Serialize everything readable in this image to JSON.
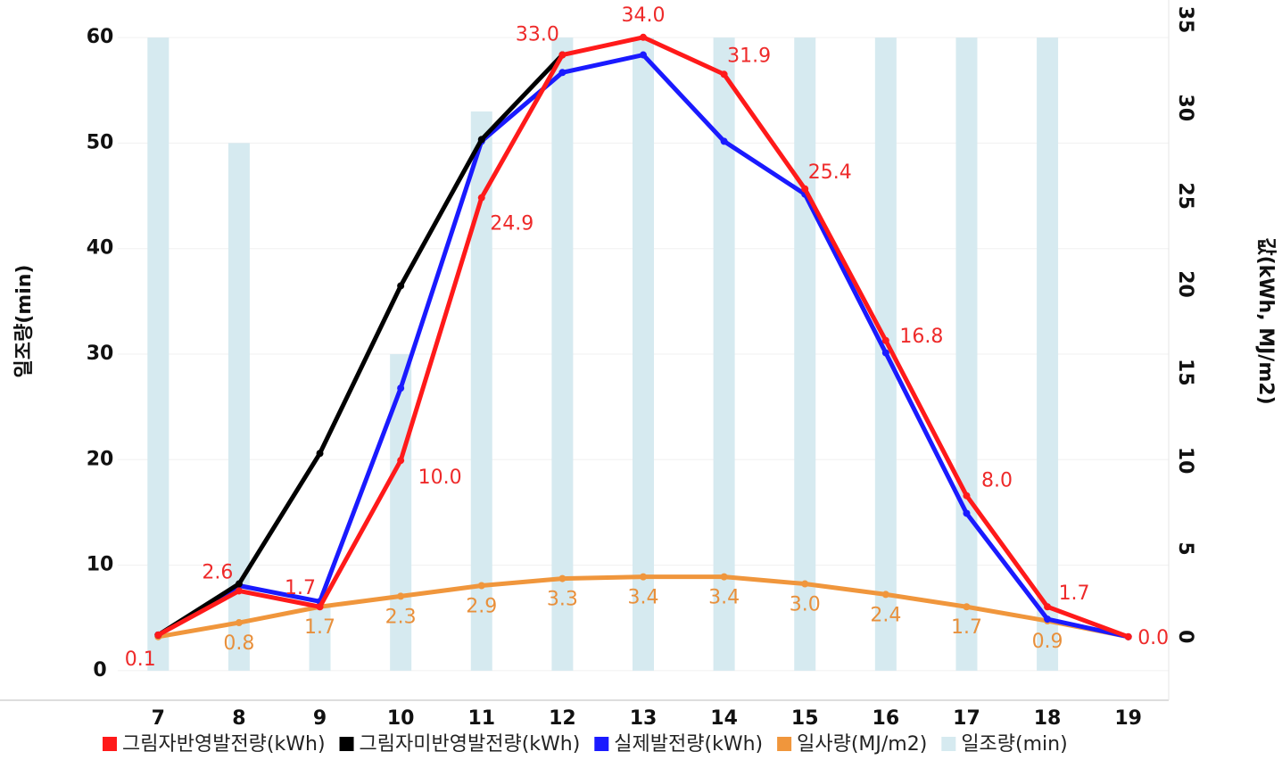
{
  "chart_data": {
    "type": "combo",
    "categories": [
      "7",
      "8",
      "9",
      "10",
      "11",
      "12",
      "13",
      "14",
      "15",
      "16",
      "17",
      "18",
      "19"
    ],
    "ylabel": "일조량(min)",
    "y2label": "값(kWh, MJ/m2)",
    "ylim": [
      -2.8,
      61.7
    ],
    "yticks": [
      0,
      10,
      20,
      30,
      40,
      50,
      60
    ],
    "y2lim": [
      -3.6,
      35
    ],
    "y2ticks": [
      0,
      5,
      10,
      15,
      20,
      25,
      30,
      35
    ],
    "grid": true,
    "legend": "bottom",
    "series": [
      {
        "name": "그림자반영발전량(kWh)",
        "type": "line",
        "axis": "y2",
        "color": "#ff1a1a",
        "values": [
          0.1,
          2.6,
          1.7,
          10.0,
          24.9,
          33.0,
          34.0,
          31.9,
          25.4,
          16.8,
          8.0,
          1.7,
          0.0
        ],
        "value_labels": [
          "0.1",
          "2.6",
          "1.7",
          "10.0",
          "24.9",
          "33.0",
          "34.0",
          "31.9",
          "25.4",
          "16.8",
          "8.0",
          "1.7",
          "0.0"
        ]
      },
      {
        "name": "그림자미반영발전량(kWh)",
        "type": "line",
        "axis": "y2",
        "color": "#000000",
        "values": [
          0.1,
          3.0,
          10.4,
          19.9,
          28.2,
          33.0,
          null,
          null,
          null,
          null,
          null,
          null,
          null
        ]
      },
      {
        "name": "실제발전량(kWh)",
        "type": "line",
        "axis": "y2",
        "color": "#1a1aff",
        "values": [
          0.1,
          2.9,
          2.0,
          14.1,
          28.1,
          32.0,
          33.0,
          28.1,
          25.1,
          16.1,
          7.0,
          1.0,
          0.0
        ]
      },
      {
        "name": "일사량(MJ/m2)",
        "type": "line",
        "axis": "y2",
        "color": "#f0963c",
        "values": [
          0.0,
          0.8,
          1.7,
          2.3,
          2.9,
          3.3,
          3.4,
          3.4,
          3.0,
          2.4,
          1.7,
          0.9,
          0.0
        ],
        "value_labels": [
          null,
          "0.8",
          "1.7",
          "2.3",
          "2.9",
          "3.3",
          "3.4",
          "3.4",
          "3.0",
          "2.4",
          "1.7",
          "0.9",
          null
        ]
      },
      {
        "name": "일조량(min)",
        "type": "bar",
        "axis": "y",
        "color": "#d6eaf0",
        "values": [
          60,
          50,
          6,
          30,
          53,
          60,
          60,
          60,
          60,
          60,
          60,
          60,
          0
        ]
      }
    ]
  }
}
